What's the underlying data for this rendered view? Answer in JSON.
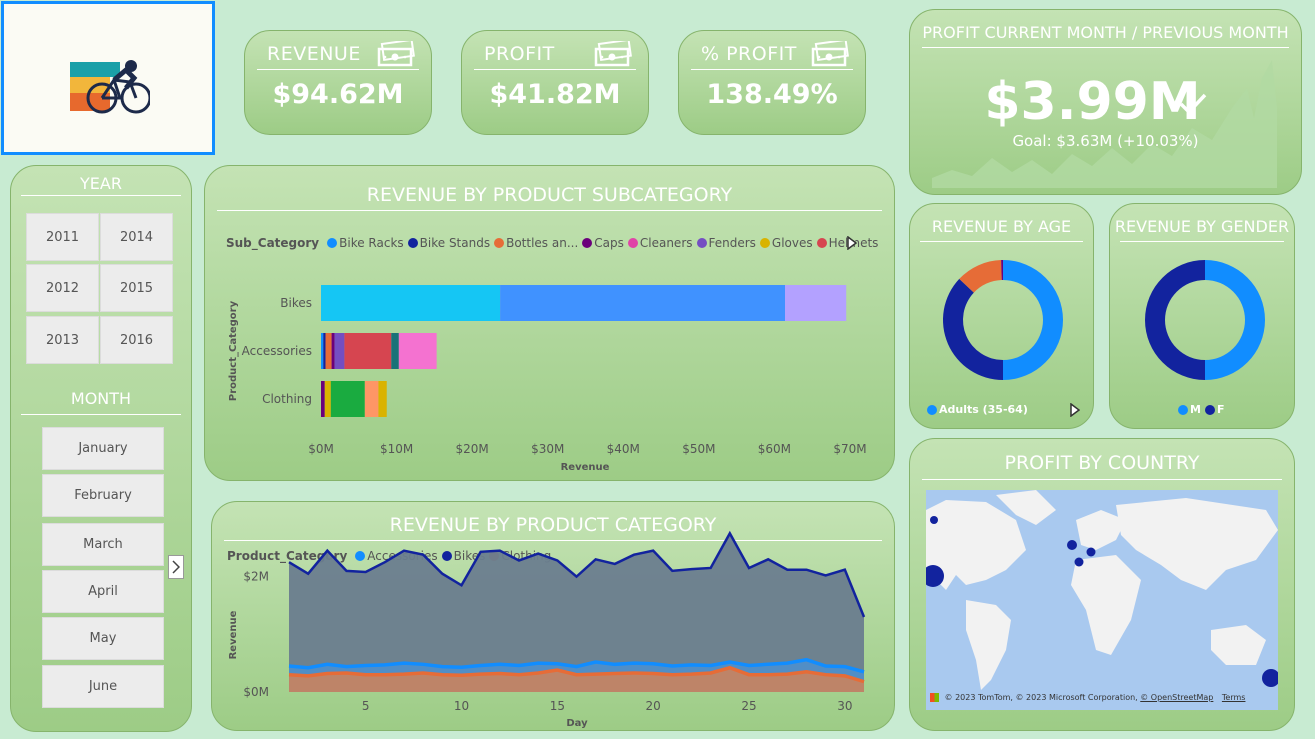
{
  "kpis": {
    "revenue": {
      "label": "REVENUE",
      "value": "$94.62M"
    },
    "profit": {
      "label": "PROFIT",
      "value": "$41.82M"
    },
    "pct_profit": {
      "label": "% PROFIT",
      "value": "138.49%"
    }
  },
  "profit_month": {
    "title": "PROFIT CURRENT MONTH / PREVIOUS MONTH",
    "value": "$3.99M",
    "goal": "Goal: $3.63M (+10.03%)"
  },
  "year_slicer": {
    "title": "YEAR",
    "options": [
      "2011",
      "2014",
      "2012",
      "2015",
      "2013",
      "2016"
    ]
  },
  "month_slicer": {
    "title": "MONTH",
    "options": [
      "January",
      "February",
      "March",
      "April",
      "May",
      "June"
    ]
  },
  "subcategory_chart": {
    "title": "REVENUE BY PRODUCT SUBCATEGORY",
    "legend_title": "Sub_Category",
    "legend": [
      {
        "name": "Bike Racks",
        "color": "#118dff"
      },
      {
        "name": "Bike Stands",
        "color": "#12239e"
      },
      {
        "name": "Bottles an...",
        "color": "#e66c37"
      },
      {
        "name": "Caps",
        "color": "#6b007b"
      },
      {
        "name": "Cleaners",
        "color": "#e044a7"
      },
      {
        "name": "Fenders",
        "color": "#744ec2"
      },
      {
        "name": "Gloves",
        "color": "#d9b300"
      },
      {
        "name": "Helmets",
        "color": "#d64550"
      }
    ],
    "ylabel": "Product_Category",
    "xlabel": "Revenue",
    "x_ticks": [
      "$0M",
      "$10M",
      "$20M",
      "$30M",
      "$40M",
      "$50M",
      "$60M",
      "$70M"
    ]
  },
  "category_chart": {
    "title": "REVENUE BY PRODUCT CATEGORY",
    "legend_title": "Product_Category",
    "legend": [
      {
        "name": "Accessories",
        "color": "#118dff"
      },
      {
        "name": "Bikes",
        "color": "#12239e"
      },
      {
        "name": "Clothing",
        "color": "#e66c37"
      }
    ],
    "ylabel": "Revenue",
    "xlabel": "Day",
    "y_ticks": [
      "$2M",
      "$0M"
    ],
    "x_ticks": [
      "5",
      "10",
      "15",
      "20",
      "25",
      "30"
    ]
  },
  "age_chart": {
    "title": "REVENUE BY AGE",
    "legend": [
      "Adults (35-64)"
    ]
  },
  "gender_chart": {
    "title": "REVENUE BY GENDER",
    "legend": [
      "M",
      "F"
    ]
  },
  "country_map": {
    "title": "PROFIT BY COUNTRY",
    "attribution": "© 2023 TomTom, © 2023 Microsoft Corporation,",
    "osm": "© OpenStreetMap",
    "terms": "Terms"
  },
  "chart_data": [
    {
      "type": "bar",
      "stacked": true,
      "orientation": "horizontal",
      "title": "REVENUE BY PRODUCT SUBCATEGORY",
      "xlabel": "Revenue",
      "ylabel": "Product_Category",
      "categories": [
        "Bikes",
        "Accessories",
        "Clothing"
      ],
      "xlim": [
        0,
        70
      ],
      "segments": {
        "Bikes": [
          {
            "value": 23.7,
            "color": "#15c6f4"
          },
          {
            "value": 37.7,
            "color": "#4092ff"
          },
          {
            "value": 8.1,
            "color": "#b3a1ff"
          }
        ],
        "Accessories": [
          {
            "value": 0.3,
            "color": "#118dff"
          },
          {
            "value": 0.3,
            "color": "#12239e"
          },
          {
            "value": 0.8,
            "color": "#e66c37"
          },
          {
            "value": 0.4,
            "color": "#6b007b"
          },
          {
            "value": 1.3,
            "color": "#744ec2"
          },
          {
            "value": 6.2,
            "color": "#d64550"
          },
          {
            "value": 1.0,
            "color": "#197278"
          },
          {
            "value": 5.0,
            "color": "#f472d0"
          }
        ],
        "Clothing": [
          {
            "value": 0.5,
            "color": "#6b007b"
          },
          {
            "value": 0.8,
            "color": "#d9b300"
          },
          {
            "value": 4.5,
            "color": "#1aab40"
          },
          {
            "value": 1.8,
            "color": "#fe9666"
          },
          {
            "value": 1.1,
            "color": "#d9b300"
          }
        ]
      }
    },
    {
      "type": "area",
      "title": "REVENUE BY PRODUCT CATEGORY",
      "xlabel": "Day",
      "ylabel": "Revenue",
      "xlim": [
        1,
        31
      ],
      "ylim": [
        0,
        2.6
      ],
      "x": [
        1,
        2,
        3,
        4,
        5,
        6,
        7,
        8,
        9,
        10,
        11,
        12,
        13,
        14,
        15,
        16,
        17,
        18,
        19,
        20,
        21,
        22,
        23,
        24,
        25,
        26,
        27,
        28,
        29,
        30,
        31
      ],
      "series": [
        {
          "name": "Bikes",
          "color": "#12239e",
          "values": [
            2.25,
            2.05,
            2.45,
            2.1,
            2.08,
            2.25,
            2.45,
            2.38,
            2.05,
            1.85,
            2.43,
            2.45,
            2.28,
            2.4,
            2.28,
            2.0,
            2.3,
            2.22,
            2.38,
            2.45,
            2.1,
            2.13,
            2.15,
            2.75,
            2.15,
            2.3,
            2.12,
            2.12,
            2.02,
            2.12,
            1.3
          ]
        },
        {
          "name": "Accessories",
          "color": "#118dff",
          "values": [
            0.45,
            0.42,
            0.48,
            0.44,
            0.46,
            0.47,
            0.5,
            0.48,
            0.44,
            0.43,
            0.46,
            0.48,
            0.46,
            0.5,
            0.49,
            0.44,
            0.52,
            0.48,
            0.5,
            0.49,
            0.45,
            0.47,
            0.46,
            0.52,
            0.46,
            0.48,
            0.5,
            0.56,
            0.45,
            0.44,
            0.35
          ]
        },
        {
          "name": "Clothing",
          "color": "#e66c37",
          "values": [
            0.3,
            0.28,
            0.32,
            0.33,
            0.3,
            0.3,
            0.31,
            0.33,
            0.3,
            0.29,
            0.31,
            0.32,
            0.3,
            0.33,
            0.38,
            0.3,
            0.31,
            0.32,
            0.33,
            0.32,
            0.3,
            0.31,
            0.33,
            0.42,
            0.3,
            0.3,
            0.31,
            0.35,
            0.3,
            0.28,
            0.18
          ]
        }
      ]
    },
    {
      "type": "pie",
      "donut": true,
      "title": "REVENUE BY AGE",
      "slices": [
        {
          "value": 50,
          "color": "#118dff"
        },
        {
          "value": 37,
          "color": "#12239e"
        },
        {
          "value": 12.5,
          "color": "#e66c37"
        },
        {
          "value": 0.5,
          "color": "#6b007b"
        }
      ]
    },
    {
      "type": "pie",
      "donut": true,
      "title": "REVENUE BY GENDER",
      "slices": [
        {
          "name": "M",
          "value": 50,
          "color": "#118dff"
        },
        {
          "name": "F",
          "value": 50,
          "color": "#12239e"
        }
      ]
    }
  ]
}
